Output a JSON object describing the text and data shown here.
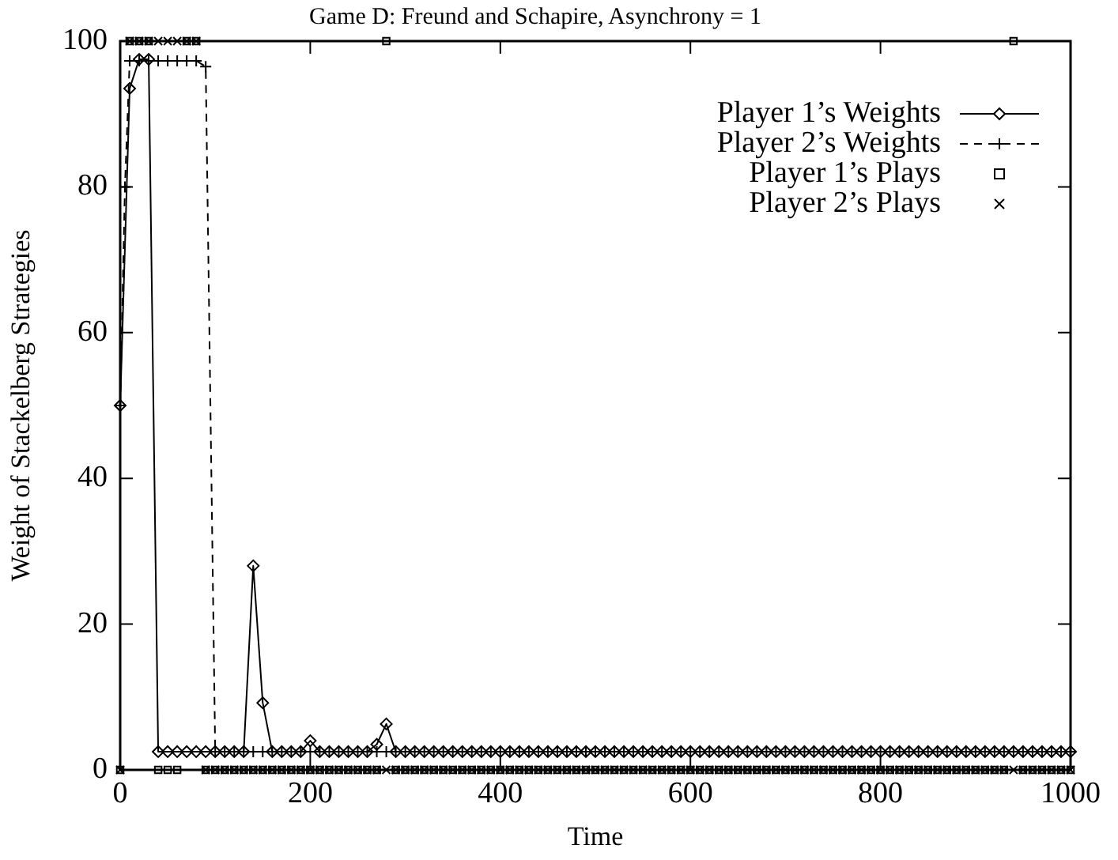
{
  "chart_data": {
    "type": "line",
    "title": "Game D: Freund and Schapire, Asynchrony = 1",
    "xlabel": "Time",
    "ylabel": "Weight of Stackelberg Strategies",
    "x": [
      0,
      10,
      20,
      30,
      40,
      50,
      60,
      70,
      80,
      90,
      100,
      110,
      120,
      130,
      140,
      150,
      160,
      170,
      180,
      190,
      200,
      210,
      220,
      230,
      240,
      250,
      260,
      270,
      280,
      290,
      300,
      310,
      320,
      330,
      340,
      350,
      360,
      370,
      380,
      390,
      400,
      410,
      420,
      430,
      440,
      450,
      460,
      470,
      480,
      490,
      500,
      510,
      520,
      530,
      540,
      550,
      560,
      570,
      580,
      590,
      600,
      610,
      620,
      630,
      640,
      650,
      660,
      670,
      680,
      690,
      700,
      710,
      720,
      730,
      740,
      750,
      760,
      770,
      780,
      790,
      800,
      810,
      820,
      830,
      840,
      850,
      860,
      870,
      880,
      890,
      900,
      910,
      920,
      930,
      940,
      950,
      960,
      970,
      980,
      990,
      1000
    ],
    "xlim": [
      0,
      1000
    ],
    "xticks": [
      0,
      200,
      400,
      600,
      800,
      1000
    ],
    "ylim": [
      0,
      100
    ],
    "yticks": [
      0,
      20,
      40,
      60,
      80,
      100
    ],
    "legend": "top right",
    "grid": false,
    "series": [
      {
        "name": "Player 1’s Weights",
        "type": "line",
        "color": "#000000",
        "marker": "diamond",
        "line_style": "solid",
        "values": [
          50,
          93.5,
          97.5,
          97.5,
          2.5,
          2.5,
          2.5,
          2.5,
          2.5,
          2.5,
          2.5,
          2.5,
          2.5,
          2.5,
          28,
          9.2,
          2.5,
          2.5,
          2.5,
          2.5,
          4,
          2.5,
          2.5,
          2.5,
          2.5,
          2.5,
          2.5,
          3.5,
          6.3,
          2.5,
          2.5,
          2.5,
          2.5,
          2.5,
          2.5,
          2.5,
          2.5,
          2.5,
          2.5,
          2.5,
          2.5,
          2.5,
          2.5,
          2.5,
          2.5,
          2.5,
          2.5,
          2.5,
          2.5,
          2.5,
          2.5,
          2.5,
          2.5,
          2.5,
          2.5,
          2.5,
          2.5,
          2.5,
          2.5,
          2.5,
          2.5,
          2.5,
          2.5,
          2.5,
          2.5,
          2.5,
          2.5,
          2.5,
          2.5,
          2.5,
          2.5,
          2.5,
          2.5,
          2.5,
          2.5,
          2.5,
          2.5,
          2.5,
          2.5,
          2.5,
          2.5,
          2.5,
          2.5,
          2.5,
          2.5,
          2.5,
          2.5,
          2.5,
          2.5,
          2.5,
          2.5,
          2.5,
          2.5,
          2.5,
          2.5,
          2.5,
          2.5,
          2.5,
          2.5,
          2.5,
          2.5
        ]
      },
      {
        "name": "Player 2’s Weights",
        "type": "line",
        "color": "#000000",
        "marker": "cross",
        "line_style": "dashed",
        "x": [
          0,
          5,
          10,
          20,
          30,
          40,
          50,
          60,
          70,
          80,
          90,
          100,
          110,
          120,
          130,
          140,
          150,
          160,
          170,
          180,
          190,
          200,
          210,
          220,
          230,
          240,
          250,
          260,
          270,
          280,
          290,
          300,
          310,
          320,
          330,
          340,
          350,
          360,
          370,
          380,
          390,
          400,
          410,
          420,
          430,
          440,
          450,
          460,
          470,
          480,
          490,
          500,
          510,
          520,
          530,
          540,
          550,
          560,
          570,
          580,
          590,
          600,
          610,
          620,
          630,
          640,
          650,
          660,
          670,
          680,
          690,
          700,
          710,
          720,
          730,
          740,
          750,
          760,
          770,
          780,
          790,
          800,
          810,
          820,
          830,
          840,
          850,
          860,
          870,
          880,
          890,
          900,
          910,
          920,
          930,
          940,
          950,
          960,
          970,
          980,
          990,
          1000
        ],
        "values": [
          50,
          80,
          97.3,
          97.3,
          97.3,
          97.3,
          97.3,
          97.3,
          97.3,
          97.3,
          96.5,
          2.5,
          2.5,
          2.5,
          2.5,
          2.5,
          2.5,
          2.5,
          2.5,
          2.5,
          2.5,
          2.5,
          2.5,
          2.5,
          2.5,
          2.5,
          2.5,
          2.5,
          2.5,
          2.5,
          2.5,
          2.5,
          2.5,
          2.5,
          2.5,
          2.5,
          2.5,
          2.5,
          2.5,
          2.5,
          2.5,
          2.5,
          2.5,
          2.5,
          2.5,
          2.5,
          2.5,
          2.5,
          2.5,
          2.5,
          2.5,
          2.5,
          2.5,
          2.5,
          2.5,
          2.5,
          2.5,
          2.5,
          2.5,
          2.5,
          2.5,
          2.5,
          2.5,
          2.5,
          2.5,
          2.5,
          2.5,
          2.5,
          2.5,
          2.5,
          2.5,
          2.5,
          2.5,
          2.5,
          2.5,
          2.5,
          2.5,
          2.5,
          2.5,
          2.5,
          2.5,
          2.5,
          2.5,
          2.5,
          2.5,
          2.5,
          2.5,
          2.5,
          2.5,
          2.5,
          2.5,
          2.5,
          2.5,
          2.5,
          2.5,
          2.5,
          2.5,
          2.5,
          2.5,
          2.5,
          2.5,
          2.5
        ]
      },
      {
        "name": "Player 1’s Plays",
        "type": "scatter",
        "color": "#000000",
        "marker": "square",
        "values": [
          0,
          100,
          100,
          100,
          0,
          0,
          0,
          100,
          100,
          0,
          0,
          0,
          0,
          0,
          0,
          0,
          0,
          0,
          0,
          0,
          0,
          0,
          0,
          0,
          0,
          0,
          0,
          0,
          100,
          0,
          0,
          0,
          0,
          0,
          0,
          0,
          0,
          0,
          0,
          0,
          0,
          0,
          0,
          0,
          0,
          0,
          0,
          0,
          0,
          0,
          0,
          0,
          0,
          0,
          0,
          0,
          0,
          0,
          0,
          0,
          0,
          0,
          0,
          0,
          0,
          0,
          0,
          0,
          0,
          0,
          0,
          0,
          0,
          0,
          0,
          0,
          0,
          0,
          0,
          0,
          0,
          0,
          0,
          0,
          0,
          0,
          0,
          0,
          0,
          0,
          0,
          0,
          0,
          0,
          100,
          0,
          0,
          0,
          0,
          0,
          0
        ]
      },
      {
        "name": "Player 2’s Plays",
        "type": "scatter",
        "color": "#000000",
        "marker": "cross",
        "values": [
          0,
          100,
          100,
          100,
          100,
          100,
          100,
          100,
          100,
          0,
          0,
          0,
          0,
          0,
          0,
          0,
          0,
          0,
          0,
          0,
          0,
          0,
          0,
          0,
          0,
          0,
          0,
          0,
          0,
          0,
          0,
          0,
          0,
          0,
          0,
          0,
          0,
          0,
          0,
          0,
          0,
          0,
          0,
          0,
          0,
          0,
          0,
          0,
          0,
          0,
          0,
          0,
          0,
          0,
          0,
          0,
          0,
          0,
          0,
          0,
          0,
          0,
          0,
          0,
          0,
          0,
          0,
          0,
          0,
          0,
          0,
          0,
          0,
          0,
          0,
          0,
          0,
          0,
          0,
          0,
          0,
          0,
          0,
          0,
          0,
          0,
          0,
          0,
          0,
          0,
          0,
          0,
          0,
          0,
          0,
          0,
          0,
          0,
          0,
          0,
          0
        ]
      }
    ]
  }
}
